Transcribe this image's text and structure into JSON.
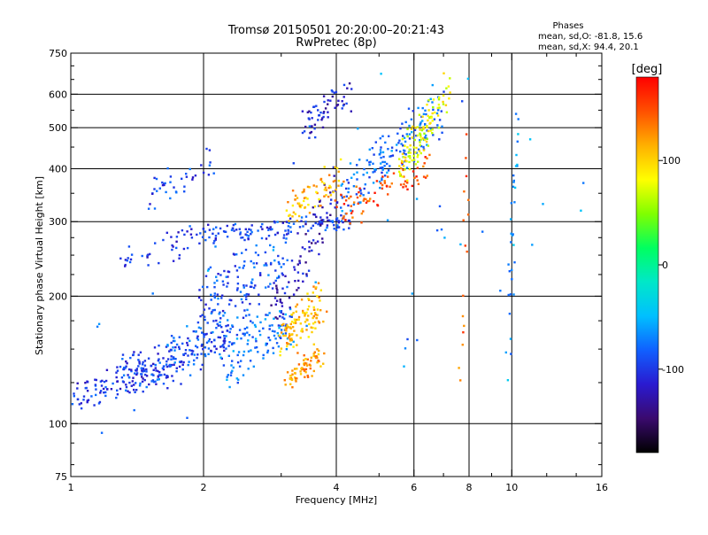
{
  "chart_data": {
    "type": "scatter",
    "title": "Tromsø 20150501 20:20:00–20:21:43",
    "subtitle": "RwPretec (8p)",
    "xlabel": "Frequency [MHz]",
    "ylabel": "Stationary phase Virtual Height [km]",
    "x_scale": "log",
    "y_scale": "log",
    "xlim": [
      1,
      16
    ],
    "ylim": [
      75,
      750
    ],
    "x_ticks": [
      1,
      2,
      4,
      6,
      8,
      10,
      16
    ],
    "y_ticks": [
      75,
      100,
      200,
      300,
      400,
      500,
      600,
      750
    ],
    "x_grid": [
      2,
      4,
      6,
      8,
      10
    ],
    "y_grid": [
      100,
      200,
      300,
      400,
      500,
      600
    ],
    "grid": true,
    "info": {
      "heading": "Phases",
      "line1": "mean, sd,O: -81.8, 15.6",
      "line2": "mean, sd,X:  94.4, 20.1"
    },
    "colorbar": {
      "label": "[deg]",
      "range": [
        -180,
        180
      ],
      "ticks": [
        100,
        0,
        -100
      ],
      "colormap": [
        "#000000",
        "#3a0a6e",
        "#2a1ad0",
        "#1060ff",
        "#00c0ff",
        "#00e8c8",
        "#00ff60",
        "#80ff00",
        "#ffff00",
        "#ffb000",
        "#ff5000",
        "#ff0000"
      ]
    },
    "traces": [
      {
        "x0": 1.0,
        "x1": 1.7,
        "h0": 112,
        "h1": 140,
        "phase": -100,
        "n": 120,
        "jitter": 0.045
      },
      {
        "x0": 1.3,
        "x1": 2.3,
        "h0": 122,
        "h1": 175,
        "phase": -95,
        "n": 130,
        "jitter": 0.06
      },
      {
        "x0": 1.6,
        "x1": 2.6,
        "h0": 125,
        "h1": 200,
        "phase": -85,
        "n": 110,
        "jitter": 0.08
      },
      {
        "x0": 2.2,
        "x1": 3.2,
        "h0": 130,
        "h1": 185,
        "phase": -75,
        "n": 100,
        "jitter": 0.08
      },
      {
        "x0": 2.0,
        "x1": 3.1,
        "h0": 190,
        "h1": 260,
        "phase": -90,
        "n": 120,
        "jitter": 0.08
      },
      {
        "x0": 2.0,
        "x1": 4.3,
        "h0": 275,
        "h1": 305,
        "phase": -95,
        "n": 120,
        "jitter": 0.025
      },
      {
        "x0": 1.3,
        "x1": 2.1,
        "h0": 235,
        "h1": 290,
        "phase": -100,
        "n": 50,
        "jitter": 0.04
      },
      {
        "x0": 1.5,
        "x1": 2.1,
        "h0": 330,
        "h1": 420,
        "phase": -95,
        "n": 40,
        "jitter": 0.05
      },
      {
        "x0": 3.4,
        "x1": 4.3,
        "h0": 480,
        "h1": 640,
        "phase": -115,
        "n": 60,
        "jitter": 0.05
      },
      {
        "x0": 2.9,
        "x1": 4.0,
        "h0": 160,
        "h1": 410,
        "phase": -120,
        "n": 90,
        "jitter": 0.06
      },
      {
        "x0": 4.0,
        "x1": 7.0,
        "h0": 300,
        "h1": 620,
        "phase": -80,
        "n": 170,
        "jitter": 0.05
      },
      {
        "x0": 3.0,
        "x1": 3.7,
        "h0": 150,
        "h1": 200,
        "phase": 110,
        "n": 110,
        "jitter": 0.07
      },
      {
        "x0": 3.1,
        "x1": 3.7,
        "h0": 125,
        "h1": 150,
        "phase": 120,
        "n": 70,
        "jitter": 0.04
      },
      {
        "x0": 3.1,
        "x1": 4.1,
        "h0": 310,
        "h1": 400,
        "phase": 110,
        "n": 70,
        "jitter": 0.05
      },
      {
        "x0": 4.0,
        "x1": 6.5,
        "h0": 295,
        "h1": 420,
        "phase": 150,
        "n": 80,
        "jitter": 0.05
      },
      {
        "x0": 5.6,
        "x1": 7.2,
        "h0": 380,
        "h1": 660,
        "phase": 80,
        "n": 110,
        "jitter": 0.05
      },
      {
        "x0": 9.8,
        "x1": 10.3,
        "h0": 110,
        "h1": 650,
        "phase": -60,
        "n": 35,
        "jitter": 0.02
      },
      {
        "x0": 7.6,
        "x1": 8.0,
        "h0": 100,
        "h1": 600,
        "phase": 140,
        "n": 16,
        "jitter": 0.02
      },
      {
        "x0": 1.0,
        "x1": 16.0,
        "h0": 95,
        "h1": 700,
        "phase": -70,
        "n": 45,
        "jitter": 0.5
      }
    ]
  }
}
